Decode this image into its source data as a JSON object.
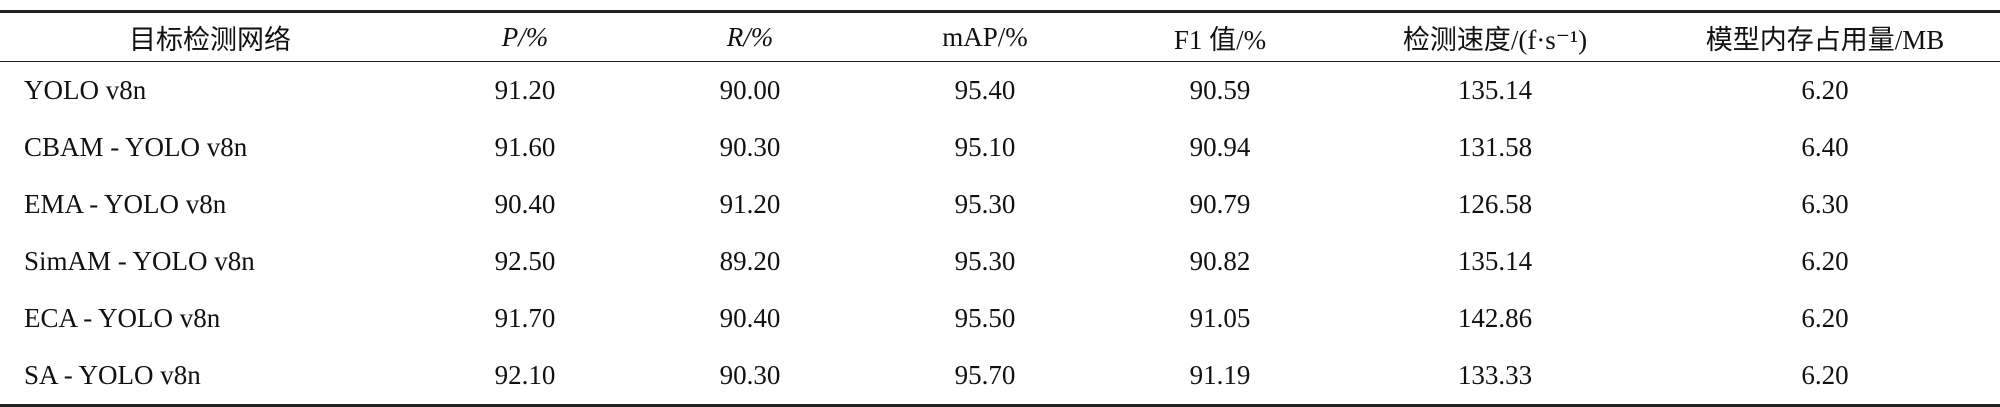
{
  "table": {
    "header": [
      "目标检测网络",
      "P/%",
      "R/%",
      "mAP/%",
      "F1 值/%",
      "检测速度/(f·s⁻¹)",
      "模型内存占用量/MB"
    ],
    "rows": [
      [
        "YOLO v8n",
        "91.20",
        "90.00",
        "95.40",
        "90.59",
        "135.14",
        "6.20"
      ],
      [
        "CBAM - YOLO v8n",
        "91.60",
        "90.30",
        "95.10",
        "90.94",
        "131.58",
        "6.40"
      ],
      [
        "EMA - YOLO v8n",
        "90.40",
        "91.20",
        "95.30",
        "90.79",
        "126.58",
        "6.30"
      ],
      [
        "SimAM - YOLO v8n",
        "92.50",
        "89.20",
        "95.30",
        "90.82",
        "135.14",
        "6.20"
      ],
      [
        "ECA - YOLO v8n",
        "91.70",
        "90.40",
        "95.50",
        "91.05",
        "142.86",
        "6.20"
      ],
      [
        "SA - YOLO v8n",
        "92.10",
        "90.30",
        "95.70",
        "91.19",
        "133.33",
        "6.20"
      ]
    ]
  }
}
